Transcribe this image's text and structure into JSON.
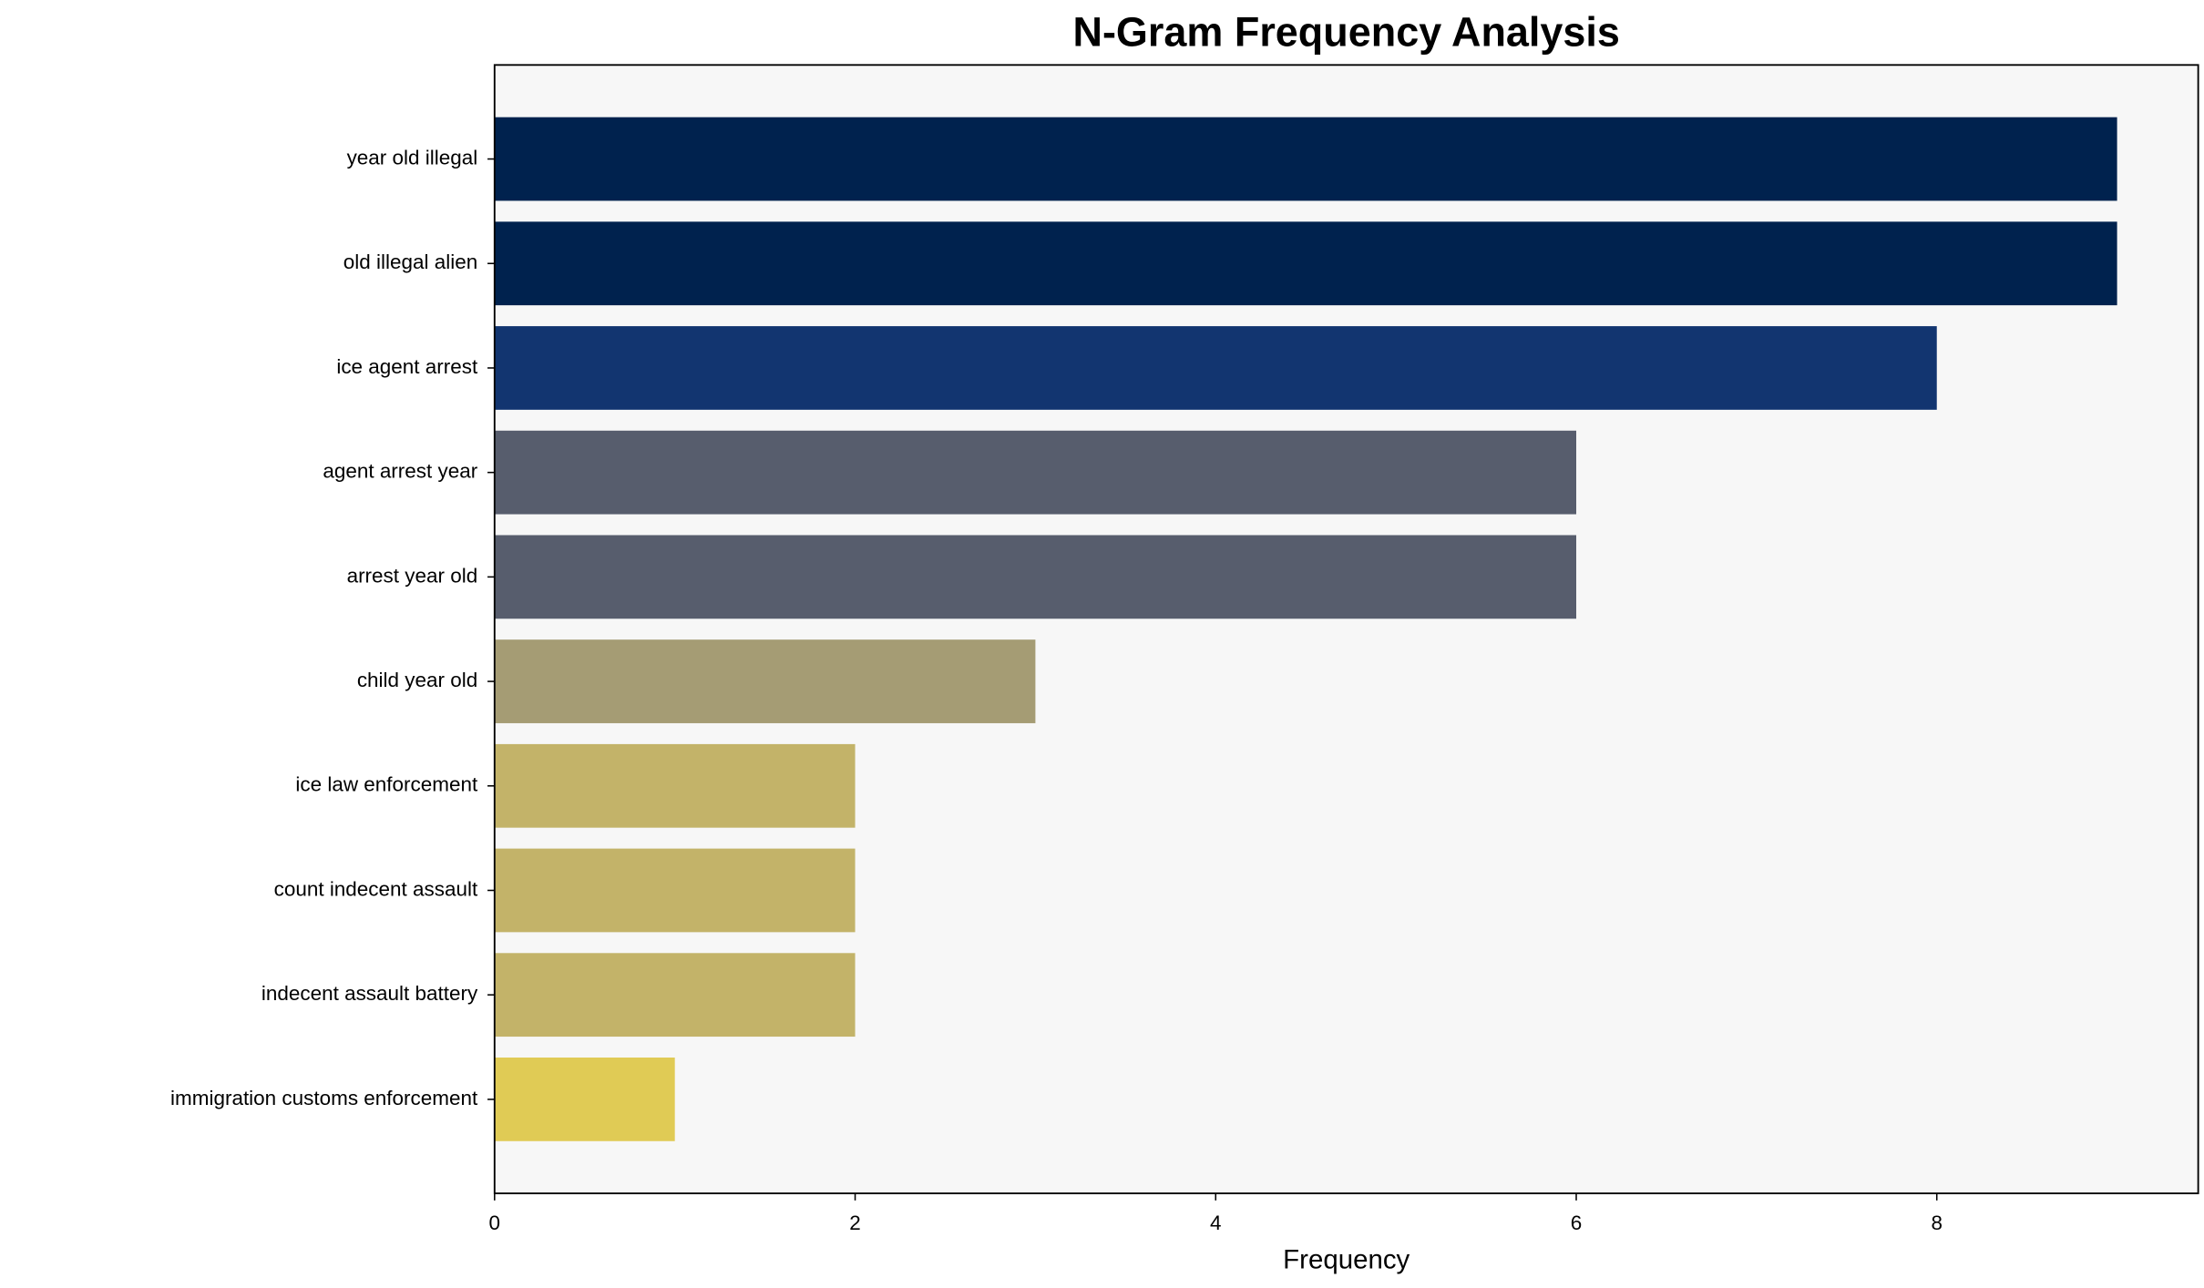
{
  "chart_data": {
    "type": "barh",
    "title": "N-Gram Frequency Analysis",
    "x_label": "Frequency",
    "categories": [
      "year old illegal",
      "old illegal alien",
      "ice agent arrest",
      "agent arrest year",
      "arrest year old",
      "child year old",
      "ice law enforcement",
      "count indecent assault",
      "indecent assault battery",
      "immigration customs enforcement"
    ],
    "values": [
      9,
      9,
      8,
      6,
      6,
      3,
      2,
      2,
      2,
      1
    ],
    "colors": [
      "#00224e",
      "#00224e",
      "#123570",
      "#575d6d",
      "#575d6d",
      "#a59c74",
      "#c3b369",
      "#c3b369",
      "#c3b369",
      "#e0cb55"
    ],
    "xlim": [
      0,
      9.45
    ],
    "xticks": [
      0,
      2,
      4,
      6,
      8
    ],
    "grid": false
  }
}
